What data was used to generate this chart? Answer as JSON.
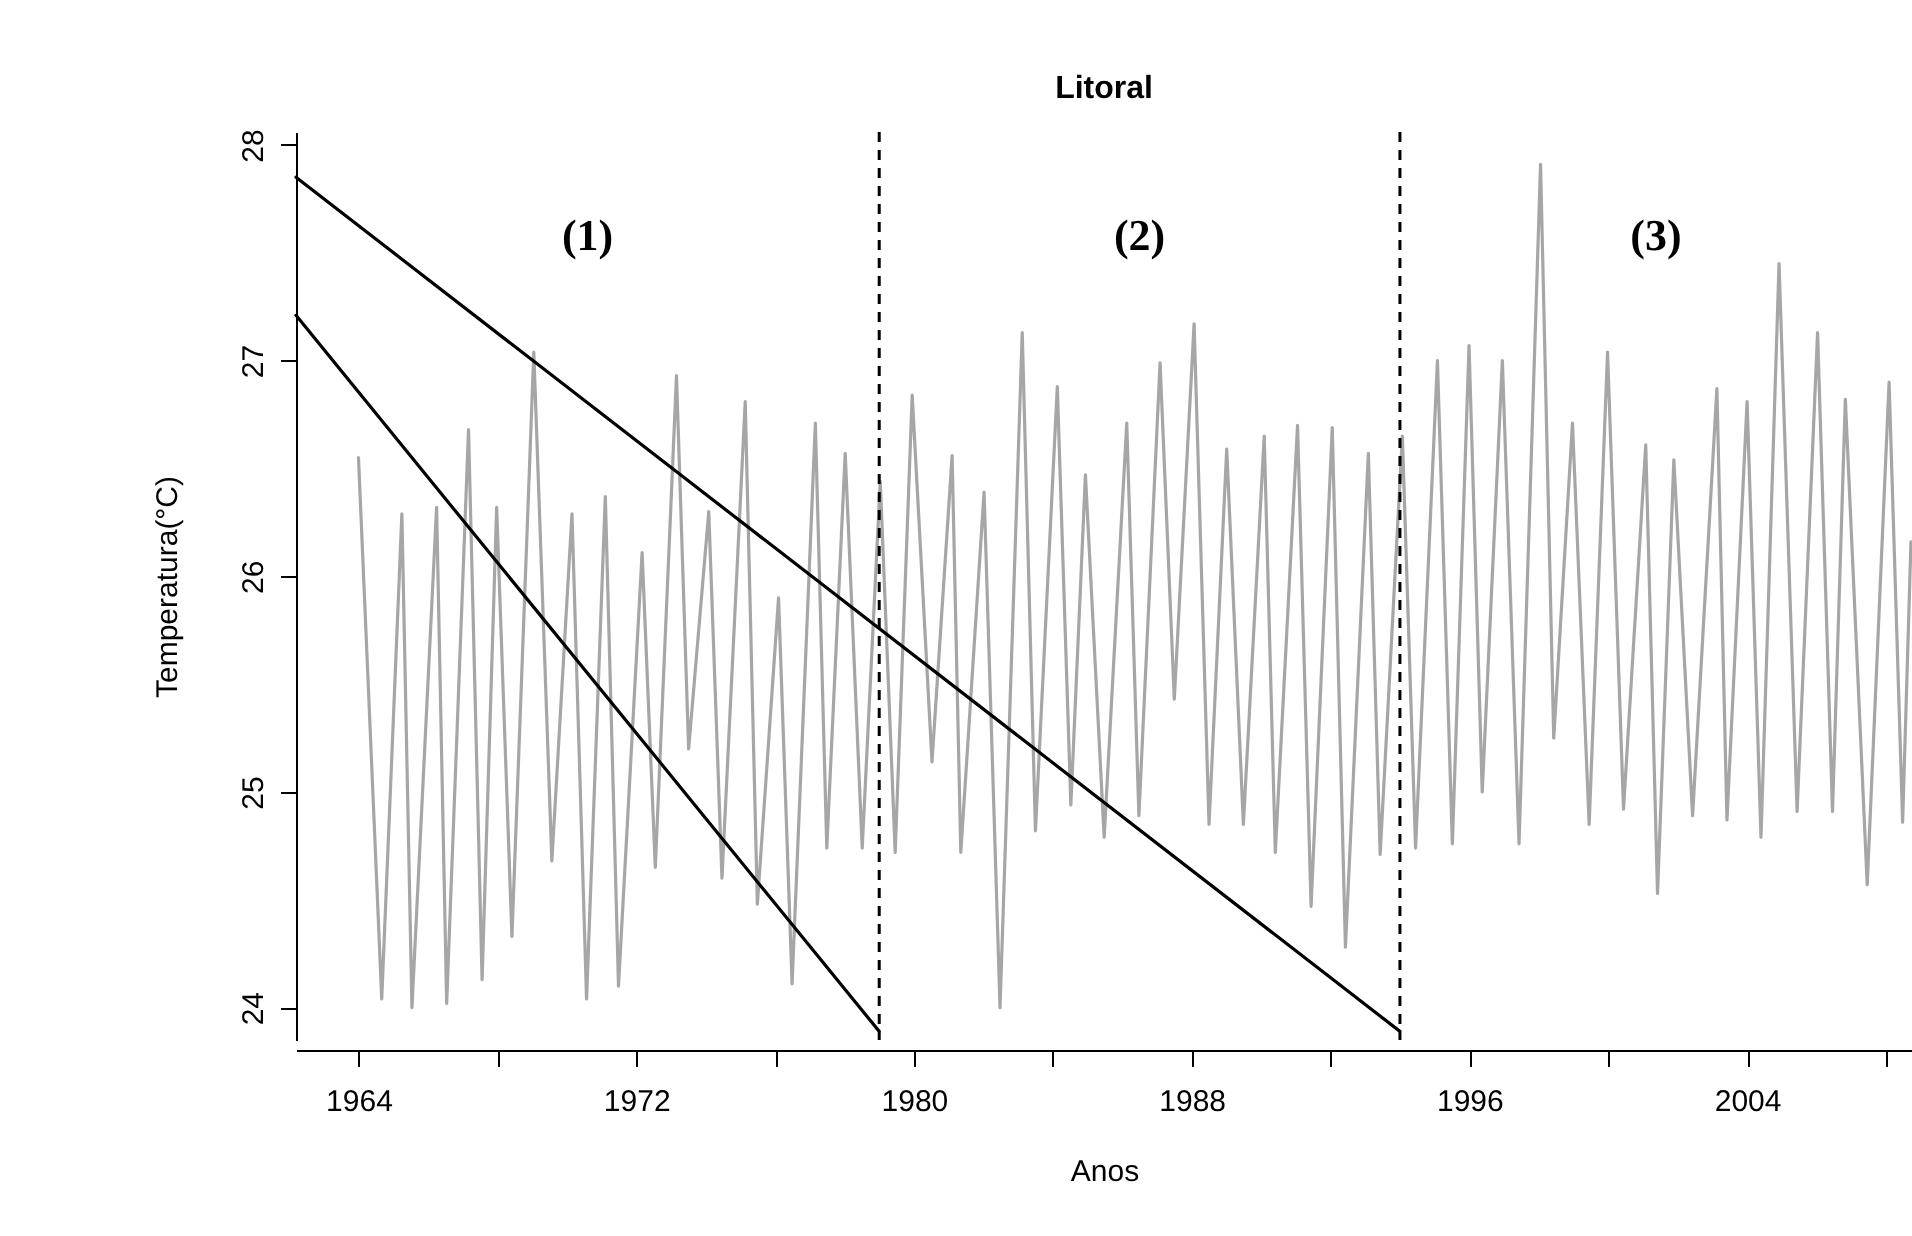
{
  "chart_data": {
    "type": "line",
    "title": "Litoral",
    "xlabel": "Anos",
    "ylabel": "Temperatura(°C)",
    "xlim": [
      1962.2,
      2008.75
    ],
    "ylim": [
      23.85,
      28.06
    ],
    "xticks": [
      1964,
      {
        "value": 1968,
        "label": null
      },
      1972,
      {
        "value": 1976,
        "label": null
      },
      1980,
      {
        "value": 1984,
        "label": null
      },
      1988,
      {
        "value": 1992,
        "label": null
      },
      1996,
      {
        "value": 2000,
        "label": null
      },
      2004,
      {
        "value": 2008,
        "label": null
      }
    ],
    "yticks": [
      24,
      25,
      26,
      27,
      28
    ],
    "series": [
      {
        "color": "#a6a6a6",
        "x": [
          1964.0,
          1964.67,
          1965.25,
          1965.54,
          1966.25,
          1966.54,
          1967.17,
          1967.56,
          1967.98,
          1968.42,
          1969.05,
          1969.57,
          1970.15,
          1970.57,
          1971.11,
          1971.49,
          1972.17,
          1972.55,
          1973.16,
          1973.51,
          1974.09,
          1974.47,
          1975.14,
          1975.49,
          1976.1,
          1976.49,
          1977.16,
          1977.49,
          1978.02,
          1978.51,
          1979.03,
          1979.46,
          1979.95,
          1980.52,
          1981.1,
          1981.35,
          1982.02,
          1982.48,
          1983.12,
          1983.5,
          1984.13,
          1984.52,
          1984.94,
          1985.48,
          1986.13,
          1986.48,
          1987.09,
          1987.5,
          1988.07,
          1988.5,
          1989.01,
          1989.49,
          1990.09,
          1990.41,
          1991.05,
          1991.44,
          1992.05,
          1992.43,
          1993.09,
          1993.43,
          1994.07,
          1994.45,
          1995.08,
          1995.51,
          1995.99,
          1996.37,
          1996.95,
          1997.43,
          1998.05,
          1998.43,
          1998.97,
          1999.45,
          1999.98,
          2000.44,
          2001.08,
          2001.42,
          2001.89,
          2002.43,
          2003.13,
          2003.42,
          2004.0,
          2004.4,
          2004.92,
          2005.44,
          2006.03,
          2006.46,
          2006.83,
          2007.46,
          2008.09,
          2008.48,
          2008.72
        ],
        "values": [
          26.55,
          24.04,
          26.29,
          24.0,
          26.32,
          24.02,
          26.68,
          24.13,
          26.32,
          24.33,
          27.04,
          24.68,
          26.29,
          24.04,
          26.37,
          24.1,
          26.11,
          24.65,
          26.93,
          25.2,
          26.3,
          24.6,
          26.81,
          24.48,
          25.9,
          24.11,
          26.71,
          24.74,
          26.57,
          24.74,
          26.44,
          24.72,
          26.84,
          25.14,
          26.56,
          24.72,
          26.39,
          24.0,
          27.13,
          24.82,
          26.88,
          24.94,
          26.47,
          24.79,
          26.71,
          24.89,
          26.99,
          25.43,
          27.17,
          24.85,
          26.59,
          24.85,
          26.65,
          24.72,
          26.7,
          24.47,
          26.69,
          24.28,
          26.57,
          24.71,
          26.65,
          24.74,
          27.0,
          24.76,
          27.07,
          25.0,
          27.0,
          24.76,
          27.91,
          25.25,
          26.71,
          24.85,
          27.04,
          24.92,
          26.61,
          24.53,
          26.54,
          24.89,
          26.87,
          24.87,
          26.81,
          24.79,
          27.45,
          24.91,
          27.13,
          24.91,
          26.82,
          24.57,
          26.9,
          24.86,
          26.16
        ]
      },
      {
        "color": "#000000",
        "x": [
          1962.2,
          1994
        ],
        "values": [
          27.85,
          23.89
        ]
      },
      {
        "color": "#000000",
        "x": [
          1962.2,
          1979
        ],
        "values": [
          27.21,
          23.89
        ]
      }
    ],
    "ref_lines": [
      {
        "axis": "x",
        "value": 1979,
        "color": "#000000",
        "line_style": "dashed"
      },
      {
        "axis": "x",
        "value": 1994,
        "color": "#000000",
        "line_style": "dashed"
      }
    ],
    "annotations": [
      "(1)",
      "(2)",
      "(3)"
    ]
  }
}
